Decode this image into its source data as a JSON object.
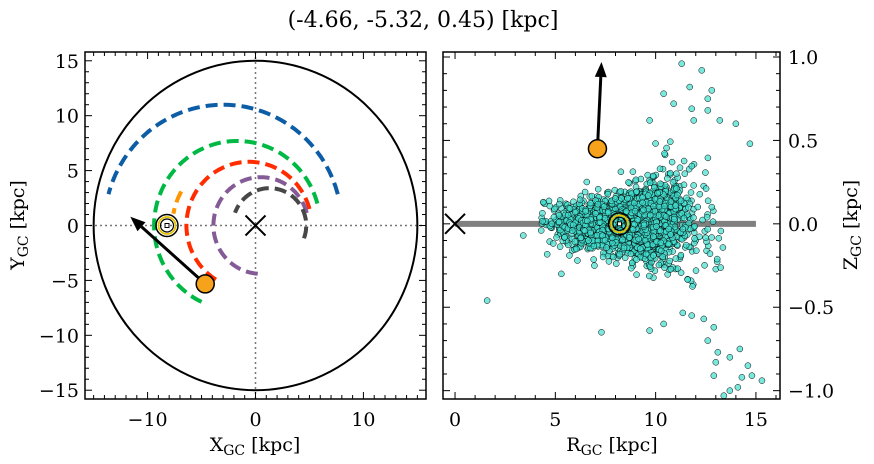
{
  "title": "(-4.66, -5.32, 0.45) [kpc]",
  "chart_data": [
    {
      "type": "line",
      "name": "galactic-plane-view",
      "xlabel_main": "X",
      "xlabel_sub": "GC",
      "xlabel_unit": " [kpc]",
      "ylabel_main": "Y",
      "ylabel_sub": "GC",
      "ylabel_unit": " [kpc]",
      "xlim": [
        -15.8,
        15.8
      ],
      "ylim": [
        -15.8,
        15.8
      ],
      "xticks": [
        -10,
        0,
        10
      ],
      "xtick_labels": [
        "−10",
        "0",
        "10"
      ],
      "yticks": [
        15,
        10,
        5,
        0,
        -5,
        -10,
        -15
      ],
      "ytick_labels": [
        "15",
        "10",
        "5",
        "0",
        "−5",
        "−10",
        "−15"
      ],
      "boundary_circle_radius": 15,
      "galactic_center": [
        0,
        0
      ],
      "sun": [
        -8.2,
        0
      ],
      "object": [
        -4.66,
        -5.32
      ],
      "velocity_arrow": {
        "from": [
          -4.66,
          -5.32
        ],
        "to": [
          -11.6,
          0.8
        ]
      },
      "arcs": [
        {
          "color": "#0c5da5",
          "radius": 11,
          "center": [
            -3,
            0
          ],
          "from_deg": 15,
          "to_deg": 165
        },
        {
          "color": "#00b945",
          "radius": 7.7,
          "center": [
            -1.7,
            0
          ],
          "from_deg": 15,
          "to_deg": 247
        },
        {
          "color": "#ff9500",
          "radius": 6.2,
          "center": [
            -1.5,
            0
          ],
          "from_deg": 150,
          "to_deg": 170
        },
        {
          "color": "#ff2c00",
          "radius": 5.8,
          "center": [
            -0.6,
            0
          ],
          "from_deg": 15,
          "to_deg": 244
        },
        {
          "color": "#845b97",
          "radius": 4.4,
          "center": [
            0.5,
            0
          ],
          "from_deg": 15,
          "to_deg": 272
        },
        {
          "color": "#474747",
          "radius": 3.4,
          "center": [
            1.3,
            0
          ],
          "from_deg": 340,
          "to_deg": 160
        }
      ]
    },
    {
      "type": "scatter",
      "name": "meridional-view",
      "xlabel_main": "R",
      "xlabel_sub": "GC",
      "xlabel_unit": " [kpc]",
      "ylabel_main": "Z",
      "ylabel_sub": "GC",
      "ylabel_unit": " [kpc]",
      "xlim": [
        -0.6,
        16.2
      ],
      "ylim": [
        -1.05,
        1.03
      ],
      "xticks": [
        0,
        5,
        10,
        15
      ],
      "xtick_labels": [
        "0",
        "5",
        "10",
        "15"
      ],
      "yticks": [
        1.0,
        0.5,
        0.0,
        -0.5,
        -1.0
      ],
      "ytick_labels": [
        "1.0",
        "0.5",
        "0.0",
        "−0.5",
        "−1.0"
      ],
      "plane_line": {
        "x": [
          0,
          15
        ],
        "z": 0
      },
      "galactic_center": [
        0,
        0
      ],
      "sun": [
        8.2,
        0
      ],
      "object": [
        7.1,
        0.45
      ],
      "velocity_arrow": {
        "from": [
          7.1,
          0.45
        ],
        "to": [
          7.3,
          0.97
        ]
      },
      "scatter_color": "#40e0d0",
      "cloud": {
        "n": 2100,
        "r_mean": 8.6,
        "r_sd": 1.6,
        "z_sd": 0.075,
        "z_flare_per_kpc": 0.034
      },
      "outliers": [
        [
          1.6,
          -0.46
        ],
        [
          3.4,
          -0.07
        ],
        [
          4.4,
          0.13
        ],
        [
          5.3,
          -0.3
        ],
        [
          6.1,
          -0.22
        ],
        [
          7.3,
          -0.65
        ],
        [
          9.7,
          -0.64
        ],
        [
          10.4,
          -0.6
        ],
        [
          11.8,
          -0.55
        ],
        [
          12.6,
          -0.7
        ],
        [
          12.9,
          -0.62
        ],
        [
          13.1,
          -0.77
        ],
        [
          13.7,
          -0.8
        ],
        [
          14.2,
          -0.75
        ],
        [
          14.6,
          -0.85
        ],
        [
          13.0,
          -0.83
        ],
        [
          12.4,
          -0.57
        ],
        [
          12.9,
          -0.91
        ],
        [
          14.3,
          -0.92
        ],
        [
          14.8,
          -0.91
        ],
        [
          15.3,
          -0.94
        ],
        [
          13.7,
          -1.0
        ],
        [
          14.1,
          -0.98
        ],
        [
          13.4,
          -1.03
        ],
        [
          11.3,
          0.96
        ],
        [
          12.3,
          0.92
        ],
        [
          11.7,
          0.82
        ],
        [
          12.8,
          0.8
        ],
        [
          12.6,
          0.68
        ],
        [
          10.9,
          0.72
        ],
        [
          13.2,
          0.62
        ],
        [
          14.0,
          0.6
        ],
        [
          11.9,
          0.62
        ],
        [
          14.7,
          0.48
        ],
        [
          10.4,
          0.78
        ],
        [
          9.7,
          0.62
        ],
        [
          12.6,
          0.75
        ],
        [
          11.8,
          0.69
        ]
      ]
    }
  ]
}
